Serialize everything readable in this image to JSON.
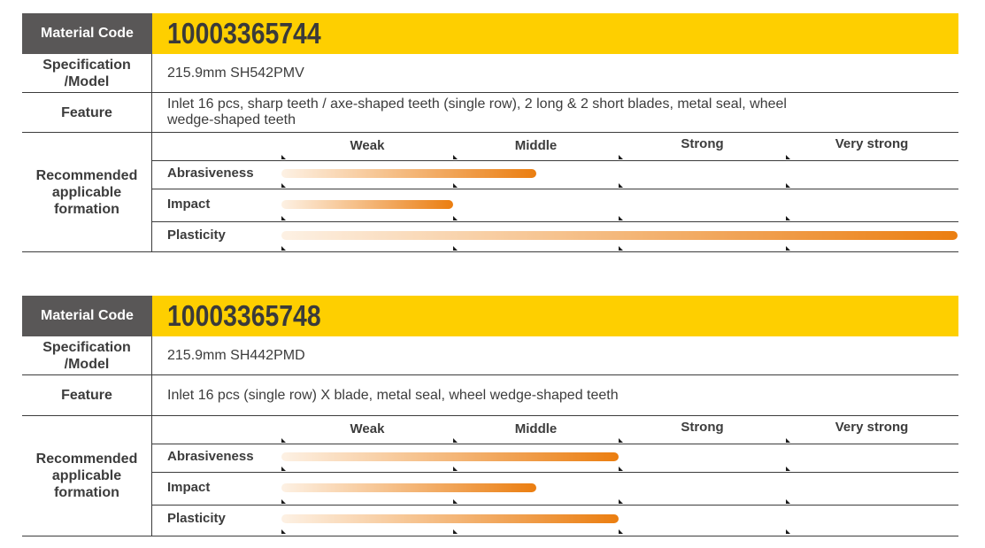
{
  "labels": {
    "material_code": "Material Code",
    "spec_line1": "Specification",
    "spec_line2": "/Model",
    "feature": "Feature",
    "rec_line1": "Recommended",
    "rec_line2": "applicable",
    "rec_line3": "formation"
  },
  "levels": [
    "Weak",
    "Middle",
    "Strong",
    "Very strong"
  ],
  "properties": [
    "Abrasiveness",
    "Impact",
    "Plasticity"
  ],
  "colors": {
    "header_yellow": "#fecf00",
    "label_gray": "#595757",
    "bar_orange": "#eb7e10"
  },
  "products": [
    {
      "material_code": "10003365744",
      "spec": "215.9mm SH542PMV",
      "feature_line1": "Inlet 16 pcs, sharp teeth / axe-shaped teeth (single row), 2 long & 2 short blades, metal seal, wheel",
      "feature_line2": "wedge-shaped teeth",
      "ratings": {
        "abrasiveness": 1.5,
        "impact": 1.0,
        "plasticity": 4.0
      }
    },
    {
      "material_code": "10003365748",
      "spec": "215.9mm SH442PMD",
      "feature_line1": "Inlet 16 pcs (single row) X blade, metal seal, wheel wedge-shaped teeth",
      "feature_line2": "",
      "ratings": {
        "abrasiveness": 2.0,
        "impact": 1.5,
        "plasticity": 2.0
      }
    }
  ]
}
